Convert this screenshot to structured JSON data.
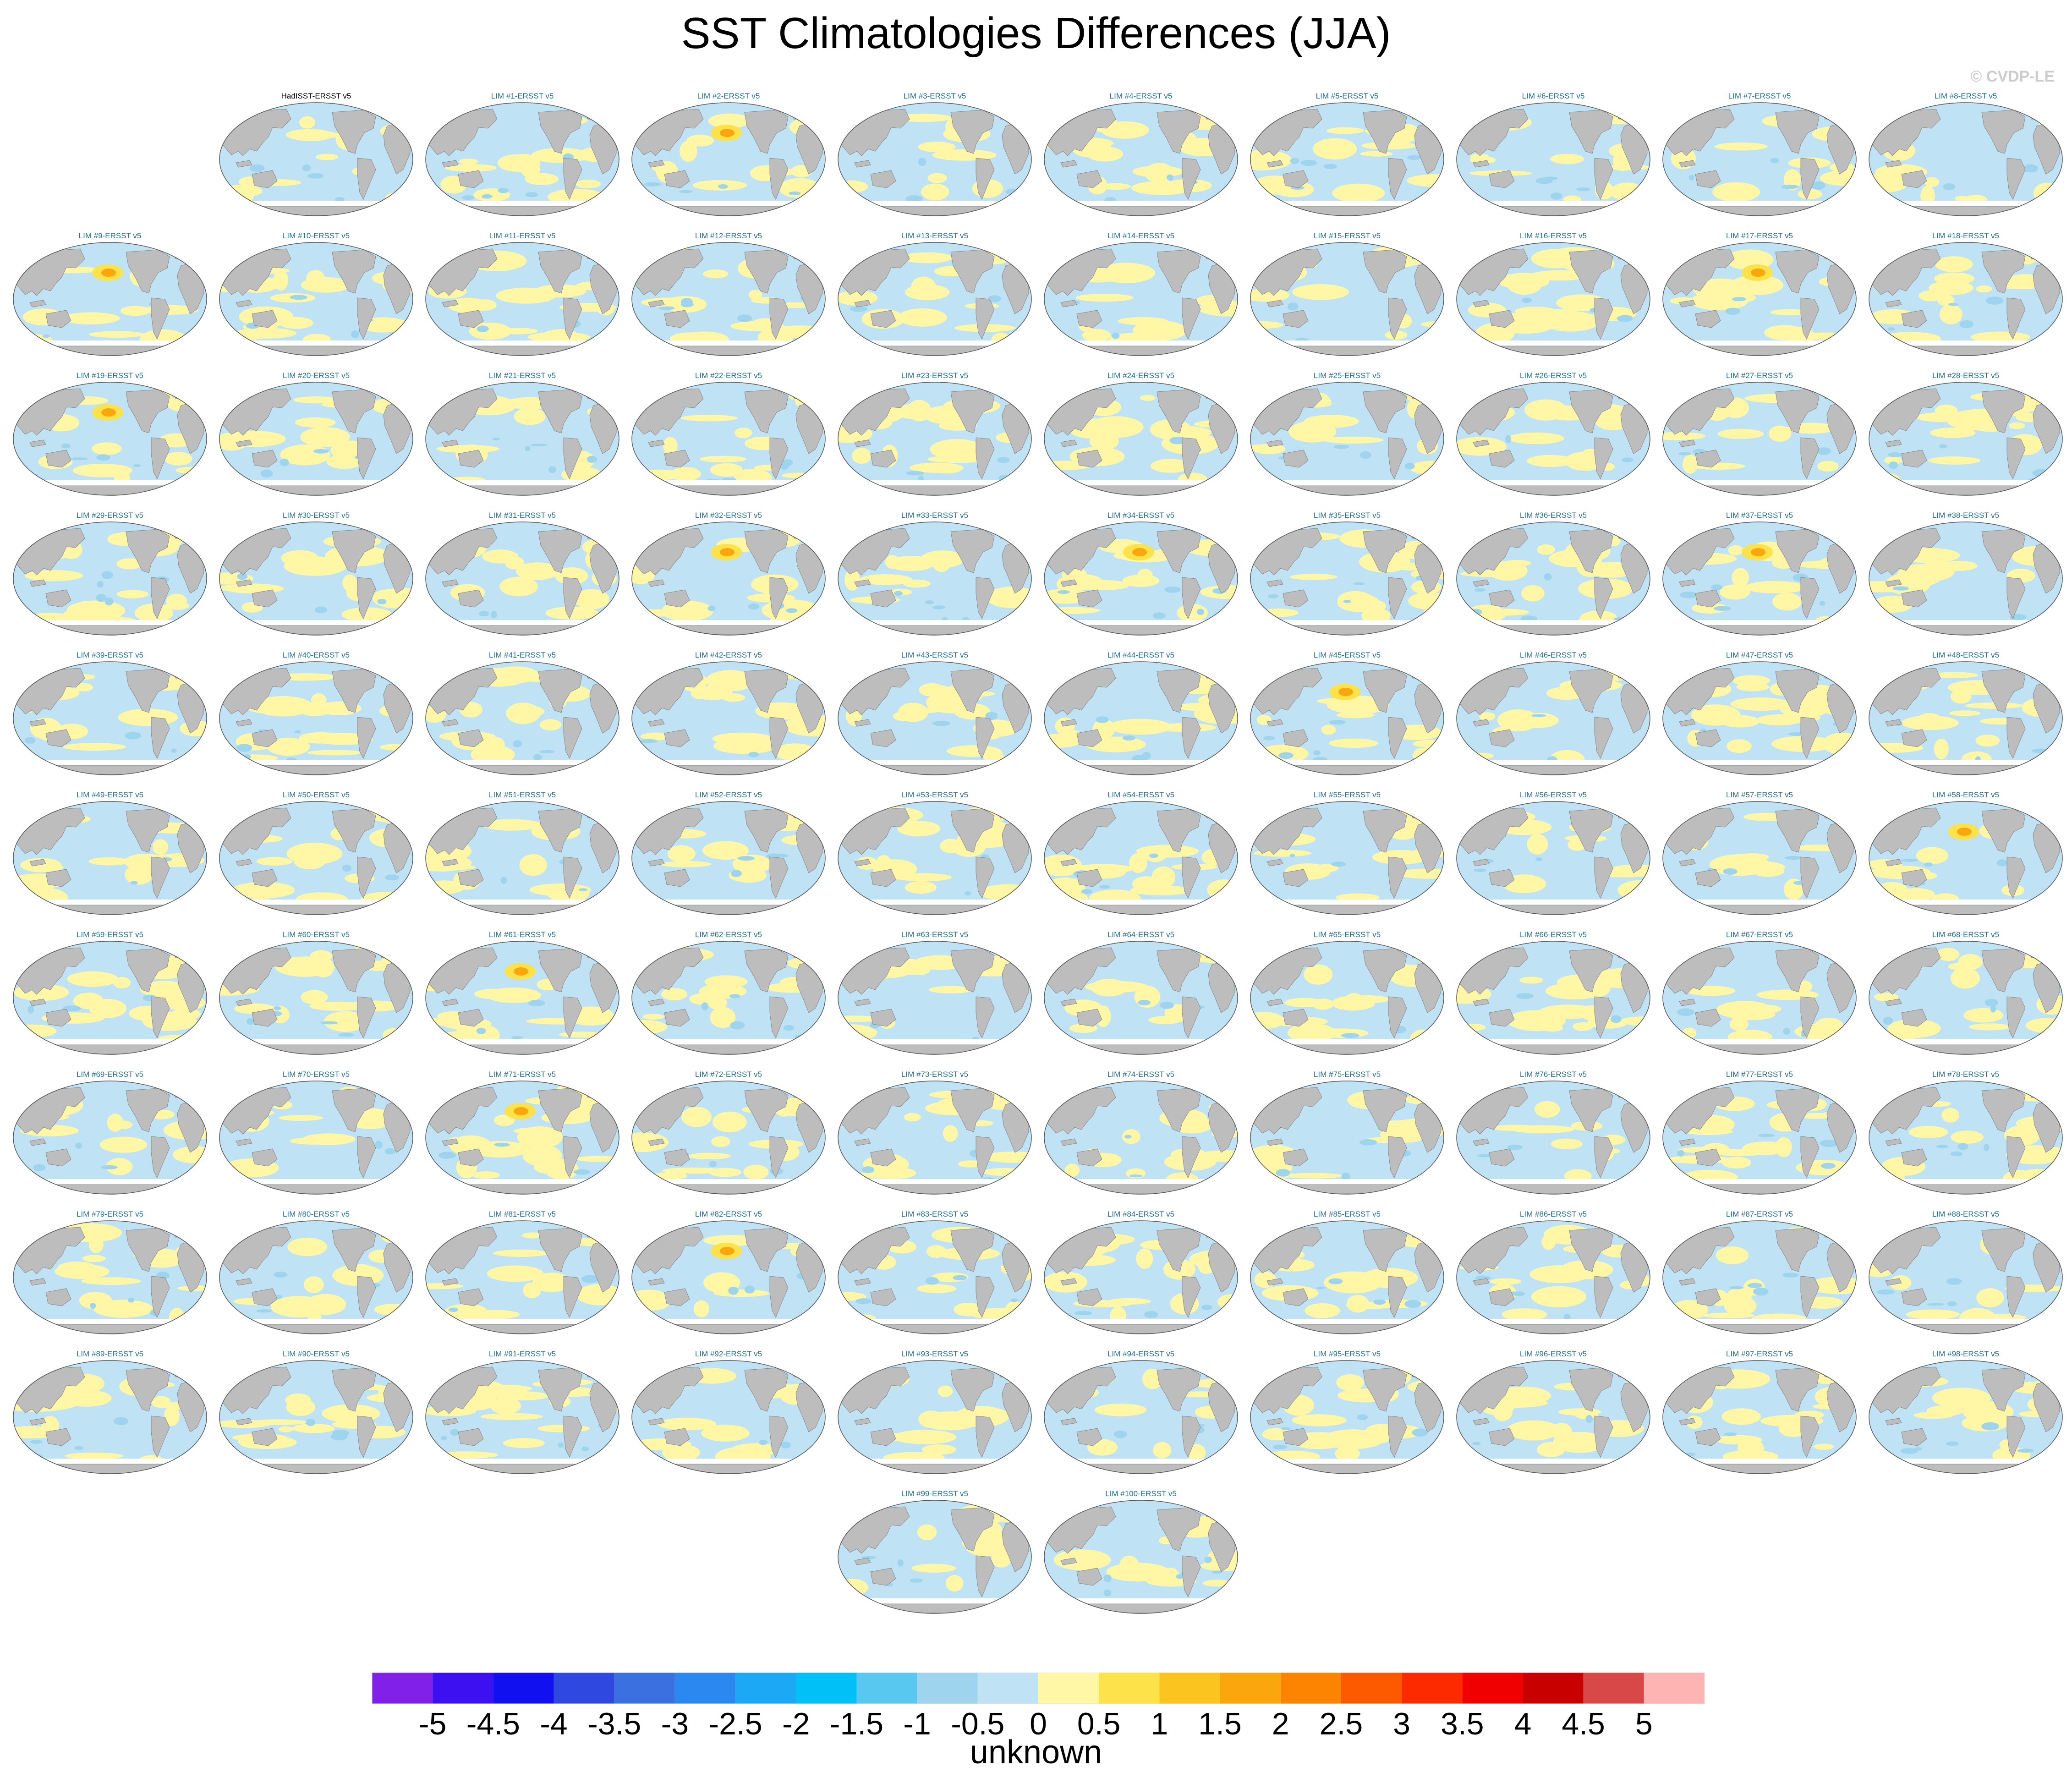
{
  "title": "SST Climatologies Differences (JJA)",
  "copyright": "© CVDP-LE",
  "units_label": "unknown",
  "colors": {
    "land": "#bdbdbd",
    "ocean_neg": "#bfe3f5",
    "ocean_pos": "#fff7a6",
    "panel_title": "#1f6f8f"
  },
  "chart_data": {
    "type": "heatmap",
    "projection": "Robinson-like global map",
    "panel_titles": [
      "HadISST-ERSST v5",
      "LIM #1-ERSST v5",
      "LIM #2-ERSST v5",
      "LIM #3-ERSST v5",
      "LIM #4-ERSST v5",
      "LIM #5-ERSST v5",
      "LIM #6-ERSST v5",
      "LIM #7-ERSST v5",
      "LIM #8-ERSST v5",
      "LIM #9-ERSST v5",
      "LIM #10-ERSST v5",
      "LIM #11-ERSST v5",
      "LIM #12-ERSST v5",
      "LIM #13-ERSST v5",
      "LIM #14-ERSST v5",
      "LIM #15-ERSST v5",
      "LIM #16-ERSST v5",
      "LIM #17-ERSST v5",
      "LIM #18-ERSST v5",
      "LIM #19-ERSST v5",
      "LIM #20-ERSST v5",
      "LIM #21-ERSST v5",
      "LIM #22-ERSST v5",
      "LIM #23-ERSST v5",
      "LIM #24-ERSST v5",
      "LIM #25-ERSST v5",
      "LIM #26-ERSST v5",
      "LIM #27-ERSST v5",
      "LIM #28-ERSST v5",
      "LIM #29-ERSST v5",
      "LIM #30-ERSST v5",
      "LIM #31-ERSST v5",
      "LIM #32-ERSST v5",
      "LIM #33-ERSST v5",
      "LIM #34-ERSST v5",
      "LIM #35-ERSST v5",
      "LIM #36-ERSST v5",
      "LIM #37-ERSST v5",
      "LIM #38-ERSST v5",
      "LIM #39-ERSST v5",
      "LIM #40-ERSST v5",
      "LIM #41-ERSST v5",
      "LIM #42-ERSST v5",
      "LIM #43-ERSST v5",
      "LIM #44-ERSST v5",
      "LIM #45-ERSST v5",
      "LIM #46-ERSST v5",
      "LIM #47-ERSST v5",
      "LIM #48-ERSST v5",
      "LIM #49-ERSST v5",
      "LIM #50-ERSST v5",
      "LIM #51-ERSST v5",
      "LIM #52-ERSST v5",
      "LIM #53-ERSST v5",
      "LIM #54-ERSST v5",
      "LIM #55-ERSST v5",
      "LIM #56-ERSST v5",
      "LIM #57-ERSST v5",
      "LIM #58-ERSST v5",
      "LIM #59-ERSST v5",
      "LIM #60-ERSST v5",
      "LIM #61-ERSST v5",
      "LIM #62-ERSST v5",
      "LIM #63-ERSST v5",
      "LIM #64-ERSST v5",
      "LIM #65-ERSST v5",
      "LIM #66-ERSST v5",
      "LIM #67-ERSST v5",
      "LIM #68-ERSST v5",
      "LIM #69-ERSST v5",
      "LIM #70-ERSST v5",
      "LIM #71-ERSST v5",
      "LIM #72-ERSST v5",
      "LIM #73-ERSST v5",
      "LIM #74-ERSST v5",
      "LIM #75-ERSST v5",
      "LIM #76-ERSST v5",
      "LIM #77-ERSST v5",
      "LIM #78-ERSST v5",
      "LIM #79-ERSST v5",
      "LIM #80-ERSST v5",
      "LIM #81-ERSST v5",
      "LIM #82-ERSST v5",
      "LIM #83-ERSST v5",
      "LIM #84-ERSST v5",
      "LIM #85-ERSST v5",
      "LIM #86-ERSST v5",
      "LIM #87-ERSST v5",
      "LIM #88-ERSST v5",
      "LIM #89-ERSST v5",
      "LIM #90-ERSST v5",
      "LIM #91-ERSST v5",
      "LIM #92-ERSST v5",
      "LIM #93-ERSST v5",
      "LIM #94-ERSST v5",
      "LIM #95-ERSST v5",
      "LIM #96-ERSST v5",
      "LIM #97-ERSST v5",
      "LIM #98-ERSST v5",
      "LIM #99-ERSST v5",
      "LIM #100-ERSST v5"
    ],
    "hotspot_panels": [
      "LIM #2-ERSST v5",
      "LIM #9-ERSST v5",
      "LIM #17-ERSST v5",
      "LIM #19-ERSST v5",
      "LIM #32-ERSST v5",
      "LIM #34-ERSST v5",
      "LIM #37-ERSST v5",
      "LIM #45-ERSST v5",
      "LIM #58-ERSST v5",
      "LIM #61-ERSST v5",
      "LIM #71-ERSST v5",
      "LIM #82-ERSST v5"
    ],
    "colorbar": {
      "tick_labels": [
        "-5",
        "-4.5",
        "-4",
        "-3.5",
        "-3",
        "-2.5",
        "-2",
        "-1.5",
        "-1",
        "-0.5",
        "0",
        "0.5",
        "1",
        "1.5",
        "2",
        "2.5",
        "3",
        "3.5",
        "4",
        "4.5",
        "5"
      ],
      "colors": [
        "#8020e8",
        "#3c10f0",
        "#1010f0",
        "#2e48e0",
        "#3a70e0",
        "#2a88f0",
        "#1ca8f5",
        "#00c0f8",
        "#58c8f0",
        "#9ed4ee",
        "#bfe3f5",
        "#fff7a6",
        "#fde24a",
        "#fcc41e",
        "#fca60e",
        "#fd8400",
        "#fd5a00",
        "#fd2a00",
        "#f00000",
        "#c80000",
        "#d84848",
        "#ffb4b4"
      ],
      "range": [
        -5,
        5
      ],
      "interval": 0.5
    }
  }
}
